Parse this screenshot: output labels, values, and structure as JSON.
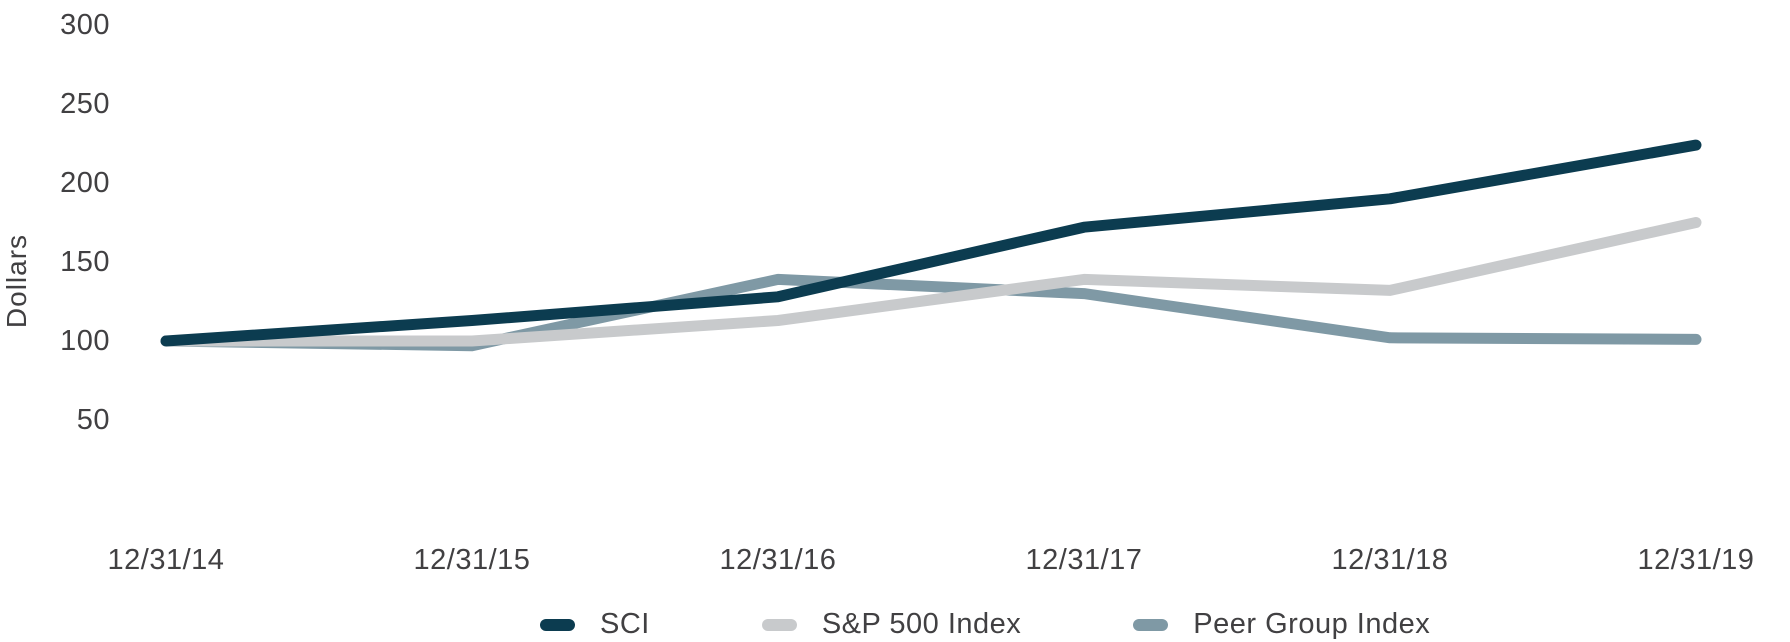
{
  "figure": {
    "background": "#ffffff",
    "axis_text_color": "#414042"
  },
  "chart_data": {
    "type": "line",
    "title": "",
    "xlabel": "",
    "ylabel": "Dollars",
    "categories": [
      "12/31/14",
      "12/31/15",
      "12/31/16",
      "12/31/17",
      "12/31/18",
      "12/31/19"
    ],
    "y_ticks": [
      300,
      250,
      200,
      150,
      100,
      50
    ],
    "ylim": [
      50,
      300
    ],
    "grid": false,
    "legend_position": "bottom",
    "line_width": 11,
    "series": [
      {
        "name": "SCI",
        "color": "#0c3c50",
        "values": [
          100,
          113,
          128,
          172,
          190,
          224
        ]
      },
      {
        "name": "S&P 500 Index",
        "color": "#c8cacc",
        "values": [
          100,
          100,
          113,
          139,
          132,
          175
        ]
      },
      {
        "name": "Peer Group Index",
        "color": "#7f99a5",
        "values": [
          100,
          97,
          139,
          130,
          102,
          101
        ]
      }
    ]
  }
}
